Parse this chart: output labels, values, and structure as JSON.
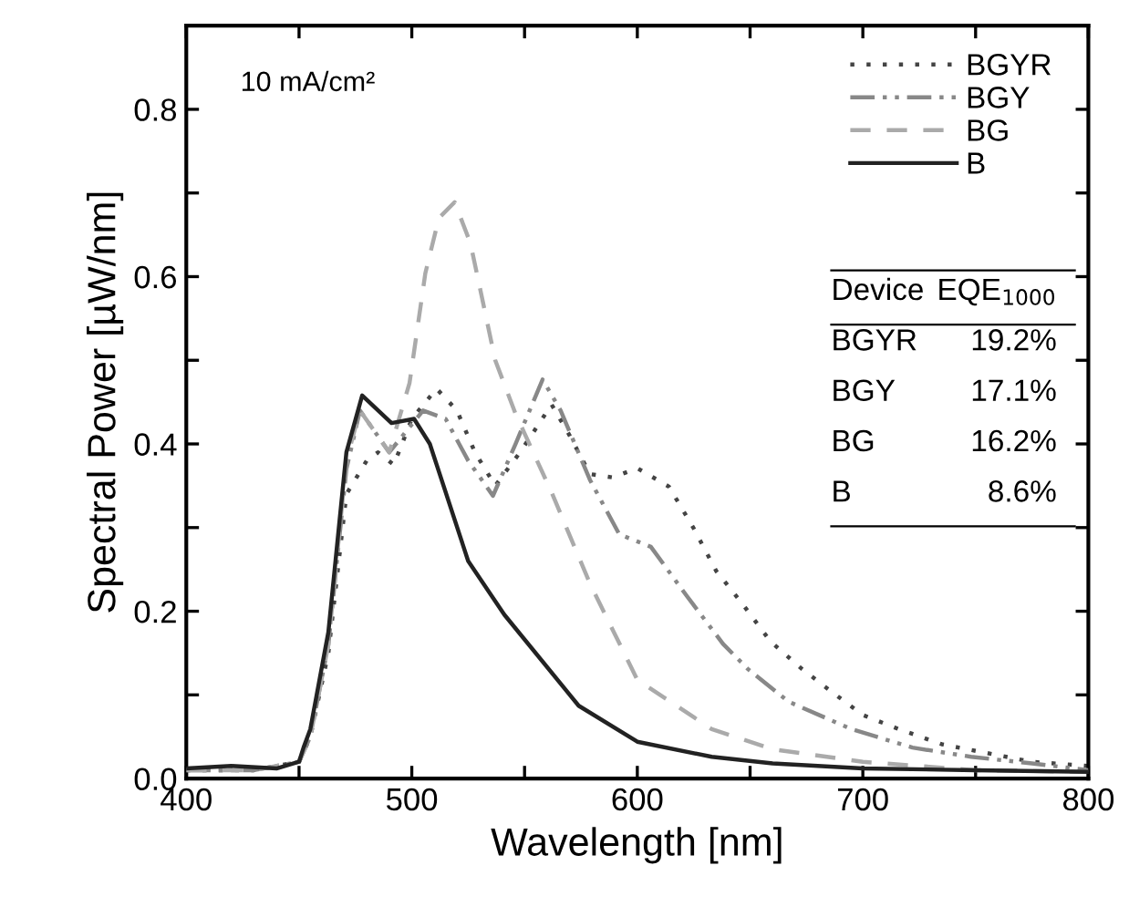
{
  "chart_data": {
    "type": "line",
    "xlabel": "Wavelength [nm]",
    "ylabel": "Spectral Power [µW/nm]",
    "xlim": [
      400,
      800
    ],
    "ylim": [
      0,
      0.9
    ],
    "xticks": [
      400,
      {
        "value": 450,
        "label": null
      },
      500,
      {
        "value": 550,
        "label": null
      },
      600,
      {
        "value": 650,
        "label": null
      },
      700,
      {
        "value": 750,
        "label": null
      },
      800
    ],
    "yticks": [
      {
        "value": 0,
        "label": "0.0"
      },
      {
        "value": 0.1,
        "label": null
      },
      0.2,
      {
        "value": 0.3,
        "label": null
      },
      0.4,
      {
        "value": 0.5,
        "label": null
      },
      0.6,
      {
        "value": 0.7,
        "label": null
      },
      0.8
    ],
    "grid": false,
    "legend": "top right",
    "series": [
      {
        "name": "BGYR",
        "color": "#444444",
        "line_style": "dotted",
        "x": [
          400,
          430,
          450,
          455,
          463,
          471,
          480,
          485,
          492,
          500,
          511,
          520,
          528,
          537,
          548,
          562,
          570,
          579,
          589,
          600,
          614,
          625,
          635,
          646,
          659,
          673,
          687,
          700,
          716,
          735,
          754,
          775,
          800
        ],
        "values": [
          0.01,
          0.01,
          0.02,
          0.05,
          0.15,
          0.34,
          0.38,
          0.39,
          0.375,
          0.43,
          0.466,
          0.44,
          0.39,
          0.35,
          0.39,
          0.447,
          0.41,
          0.364,
          0.36,
          0.371,
          0.349,
          0.299,
          0.248,
          0.211,
          0.164,
          0.131,
          0.102,
          0.076,
          0.059,
          0.041,
          0.031,
          0.02,
          0.015
        ]
      },
      {
        "name": "BGY",
        "color": "#888888",
        "line_style": "dashdot",
        "x": [
          400,
          430,
          450,
          455,
          463,
          471,
          477,
          490,
          505,
          515,
          525,
          536,
          546,
          558,
          566,
          579,
          592,
          606,
          622,
          638,
          649,
          667,
          695,
          722,
          748,
          775,
          800
        ],
        "values": [
          0.01,
          0.01,
          0.02,
          0.05,
          0.16,
          0.37,
          0.44,
          0.39,
          0.44,
          0.43,
          0.38,
          0.338,
          0.4,
          0.477,
          0.44,
          0.357,
          0.292,
          0.277,
          0.218,
          0.161,
          0.131,
          0.092,
          0.059,
          0.037,
          0.026,
          0.018,
          0.01
        ]
      },
      {
        "name": "BG",
        "color": "#aaaaaa",
        "line_style": "dashed",
        "x": [
          400,
          430,
          450,
          455,
          463,
          471,
          477,
          490,
          499,
          506,
          512,
          519,
          526,
          537,
          546,
          562,
          579,
          600,
          633,
          660,
          700,
          750,
          800
        ],
        "values": [
          0.01,
          0.01,
          0.02,
          0.05,
          0.16,
          0.38,
          0.44,
          0.39,
          0.473,
          0.604,
          0.67,
          0.689,
          0.64,
          0.5,
          0.436,
          0.342,
          0.233,
          0.118,
          0.059,
          0.035,
          0.02,
          0.01,
          0.008
        ]
      },
      {
        "name": "B",
        "color": "#222222",
        "line_style": "solid",
        "x": [
          400,
          420,
          440,
          450,
          452,
          455,
          463,
          471,
          478,
          491,
          501,
          508,
          525,
          541,
          574,
          600,
          633,
          660,
          700,
          750,
          800
        ],
        "values": [
          0.012,
          0.015,
          0.012,
          0.02,
          0.037,
          0.059,
          0.175,
          0.39,
          0.458,
          0.425,
          0.43,
          0.4,
          0.26,
          0.196,
          0.087,
          0.044,
          0.026,
          0.018,
          0.012,
          0.01,
          0.008
        ]
      }
    ],
    "annotations": [
      "10 mA/cm²",
      "Device",
      "EQE$_{1000}$",
      "BGYR",
      "19.2%",
      "BGY",
      "17.1%",
      "BG",
      "16.2%",
      "B",
      "8.6%"
    ]
  }
}
